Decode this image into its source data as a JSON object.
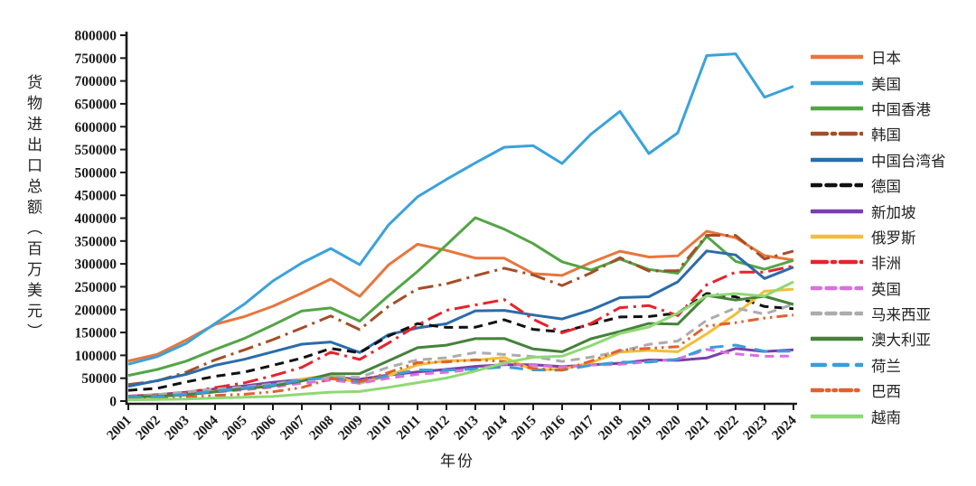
{
  "chart_data": {
    "type": "line",
    "title": "",
    "xlabel": "年份",
    "ylabel": "货物进出口总额（百万美元）",
    "unit": "百万美元",
    "grid": false,
    "legend_position": "right",
    "ylim": [
      0,
      800000
    ],
    "ytick_step": 50000,
    "yticks": [
      0,
      50000,
      100000,
      150000,
      200000,
      250000,
      300000,
      350000,
      400000,
      450000,
      500000,
      550000,
      600000,
      650000,
      700000,
      750000,
      800000
    ],
    "x": [
      2001,
      2002,
      2003,
      2004,
      2005,
      2006,
      2007,
      2008,
      2009,
      2010,
      2011,
      2012,
      2013,
      2014,
      2015,
      2016,
      2017,
      2018,
      2019,
      2020,
      2021,
      2022,
      2023,
      2024
    ],
    "series": [
      {
        "name": "日本",
        "color": "#E8763B",
        "dash": "solid",
        "values": [
          87800,
          101900,
          133600,
          167900,
          184400,
          207400,
          236000,
          266800,
          228900,
          297800,
          342900,
          329400,
          312600,
          312400,
          278700,
          274800,
          303000,
          327700,
          315000,
          317500,
          371400,
          357400,
          318000,
          308300
        ]
      },
      {
        "name": "美国",
        "color": "#3AA2DB",
        "dash": "solid",
        "values": [
          80500,
          97200,
          126300,
          169600,
          211600,
          262700,
          302100,
          333700,
          298300,
          385300,
          446600,
          484700,
          520800,
          555100,
          558400,
          519600,
          583700,
          633500,
          541200,
          586700,
          755600,
          759400,
          664500,
          688300
        ]
      },
      {
        "name": "中国香港",
        "color": "#53A546",
        "dash": "solid",
        "values": [
          56000,
          69200,
          87400,
          112700,
          136700,
          166200,
          197200,
          203700,
          174900,
          230600,
          283500,
          341500,
          401000,
          376000,
          344300,
          304600,
          286600,
          310500,
          287900,
          279600,
          360200,
          305500,
          288100,
          307700
        ]
      },
      {
        "name": "韩国",
        "color": "#A34E28",
        "dash": "dashdot",
        "values": [
          35900,
          44100,
          63200,
          90100,
          111900,
          134300,
          159900,
          186100,
          156200,
          207200,
          245600,
          256300,
          274200,
          290500,
          275800,
          252600,
          280300,
          313400,
          284500,
          285300,
          362400,
          362300,
          310700,
          328100
        ]
      },
      {
        "name": "中国台湾省",
        "color": "#2B6CA9",
        "dash": "solid",
        "values": [
          32300,
          44700,
          58400,
          78300,
          91200,
          107800,
          124500,
          129200,
          106200,
          145400,
          160000,
          169000,
          197300,
          198300,
          188200,
          179600,
          199400,
          226200,
          228100,
          260800,
          328300,
          319700,
          268000,
          293000
        ]
      },
      {
        "name": "德国",
        "color": "#111111",
        "dash": "dash",
        "values": [
          23500,
          27800,
          41900,
          54100,
          63300,
          78200,
          94100,
          115000,
          105700,
          142400,
          169200,
          161100,
          161600,
          177800,
          156800,
          151300,
          168100,
          183900,
          184900,
          192400,
          235200,
          228000,
          206800,
          201900
        ]
      },
      {
        "name": "新加坡",
        "color": "#7B3FA8",
        "dash": "solid",
        "values": [
          10900,
          14000,
          19400,
          26700,
          33200,
          40900,
          47200,
          52400,
          47900,
          57100,
          63600,
          69400,
          75900,
          79700,
          79500,
          75200,
          79200,
          82800,
          89900,
          89100,
          94300,
          115000,
          108400,
          112200
        ]
      },
      {
        "name": "俄罗斯",
        "color": "#F3BE37",
        "dash": "solid",
        "values": [
          10700,
          11900,
          15800,
          21200,
          29100,
          33400,
          48200,
          56800,
          38800,
          55400,
          79200,
          88200,
          89200,
          95300,
          68100,
          69500,
          84100,
          107100,
          110800,
          107800,
          146900,
          190300,
          240100,
          244800
        ]
      },
      {
        "name": "非洲",
        "color": "#E8232B",
        "dash": "dashdot",
        "values": [
          10800,
          12400,
          18500,
          29500,
          39700,
          55500,
          73600,
          106800,
          91100,
          127000,
          166300,
          198500,
          210200,
          221900,
          179000,
          149100,
          169800,
          204200,
          208700,
          187000,
          254300,
          282100,
          282100,
          295600
        ]
      },
      {
        "name": "英国",
        "color": "#D970DE",
        "dash": "dash",
        "values": [
          10300,
          11400,
          14400,
          19700,
          24500,
          30400,
          39400,
          45600,
          39200,
          50100,
          58700,
          63100,
          70000,
          80900,
          78500,
          74300,
          79000,
          80400,
          86300,
          92300,
          112800,
          103300,
          97900,
          98400
        ]
      },
      {
        "name": "马来西亚",
        "color": "#ACACAC",
        "dash": "dash",
        "values": [
          9400,
          14300,
          20100,
          26300,
          30700,
          37100,
          46400,
          53500,
          52000,
          74200,
          90100,
          94800,
          106100,
          102000,
          97400,
          86800,
          96000,
          108700,
          124000,
          131200,
          176800,
          203600,
          190200,
          212000
        ]
      },
      {
        "name": "澳大利亚",
        "color": "#45823B",
        "dash": "solid",
        "values": [
          9000,
          10400,
          13600,
          20400,
          27300,
          32900,
          43800,
          59700,
          60100,
          88100,
          116800,
          122300,
          136400,
          136900,
          114000,
          107800,
          136300,
          152200,
          169600,
          168300,
          231200,
          220900,
          229200,
          211300
        ]
      },
      {
        "name": "荷兰",
        "color": "#3B9DD8",
        "dash": "longdash",
        "values": [
          7900,
          9100,
          15400,
          21400,
          28800,
          34500,
          46300,
          51300,
          42000,
          56100,
          68200,
          67600,
          70200,
          74600,
          68200,
          67600,
          78400,
          85200,
          85100,
          91700,
          116400,
          122500,
          108800,
          109200
        ]
      },
      {
        "name": "巴西",
        "color": "#E2602F",
        "dash": "dashdotdot",
        "values": [
          3700,
          4500,
          8000,
          12400,
          14800,
          20300,
          29700,
          48700,
          42400,
          62500,
          84200,
          85700,
          90300,
          86700,
          71600,
          67800,
          87500,
          111200,
          115300,
          118900,
          164100,
          171500,
          181500,
          188200
        ]
      },
      {
        "name": "越南",
        "color": "#8FD973",
        "dash": "solid",
        "values": [
          2800,
          3300,
          4600,
          6700,
          8200,
          10000,
          15100,
          19500,
          21000,
          30100,
          40200,
          50400,
          65500,
          83600,
          95800,
          98200,
          121300,
          147900,
          162000,
          192300,
          230200,
          234900,
          229800,
          260700
        ]
      }
    ]
  }
}
